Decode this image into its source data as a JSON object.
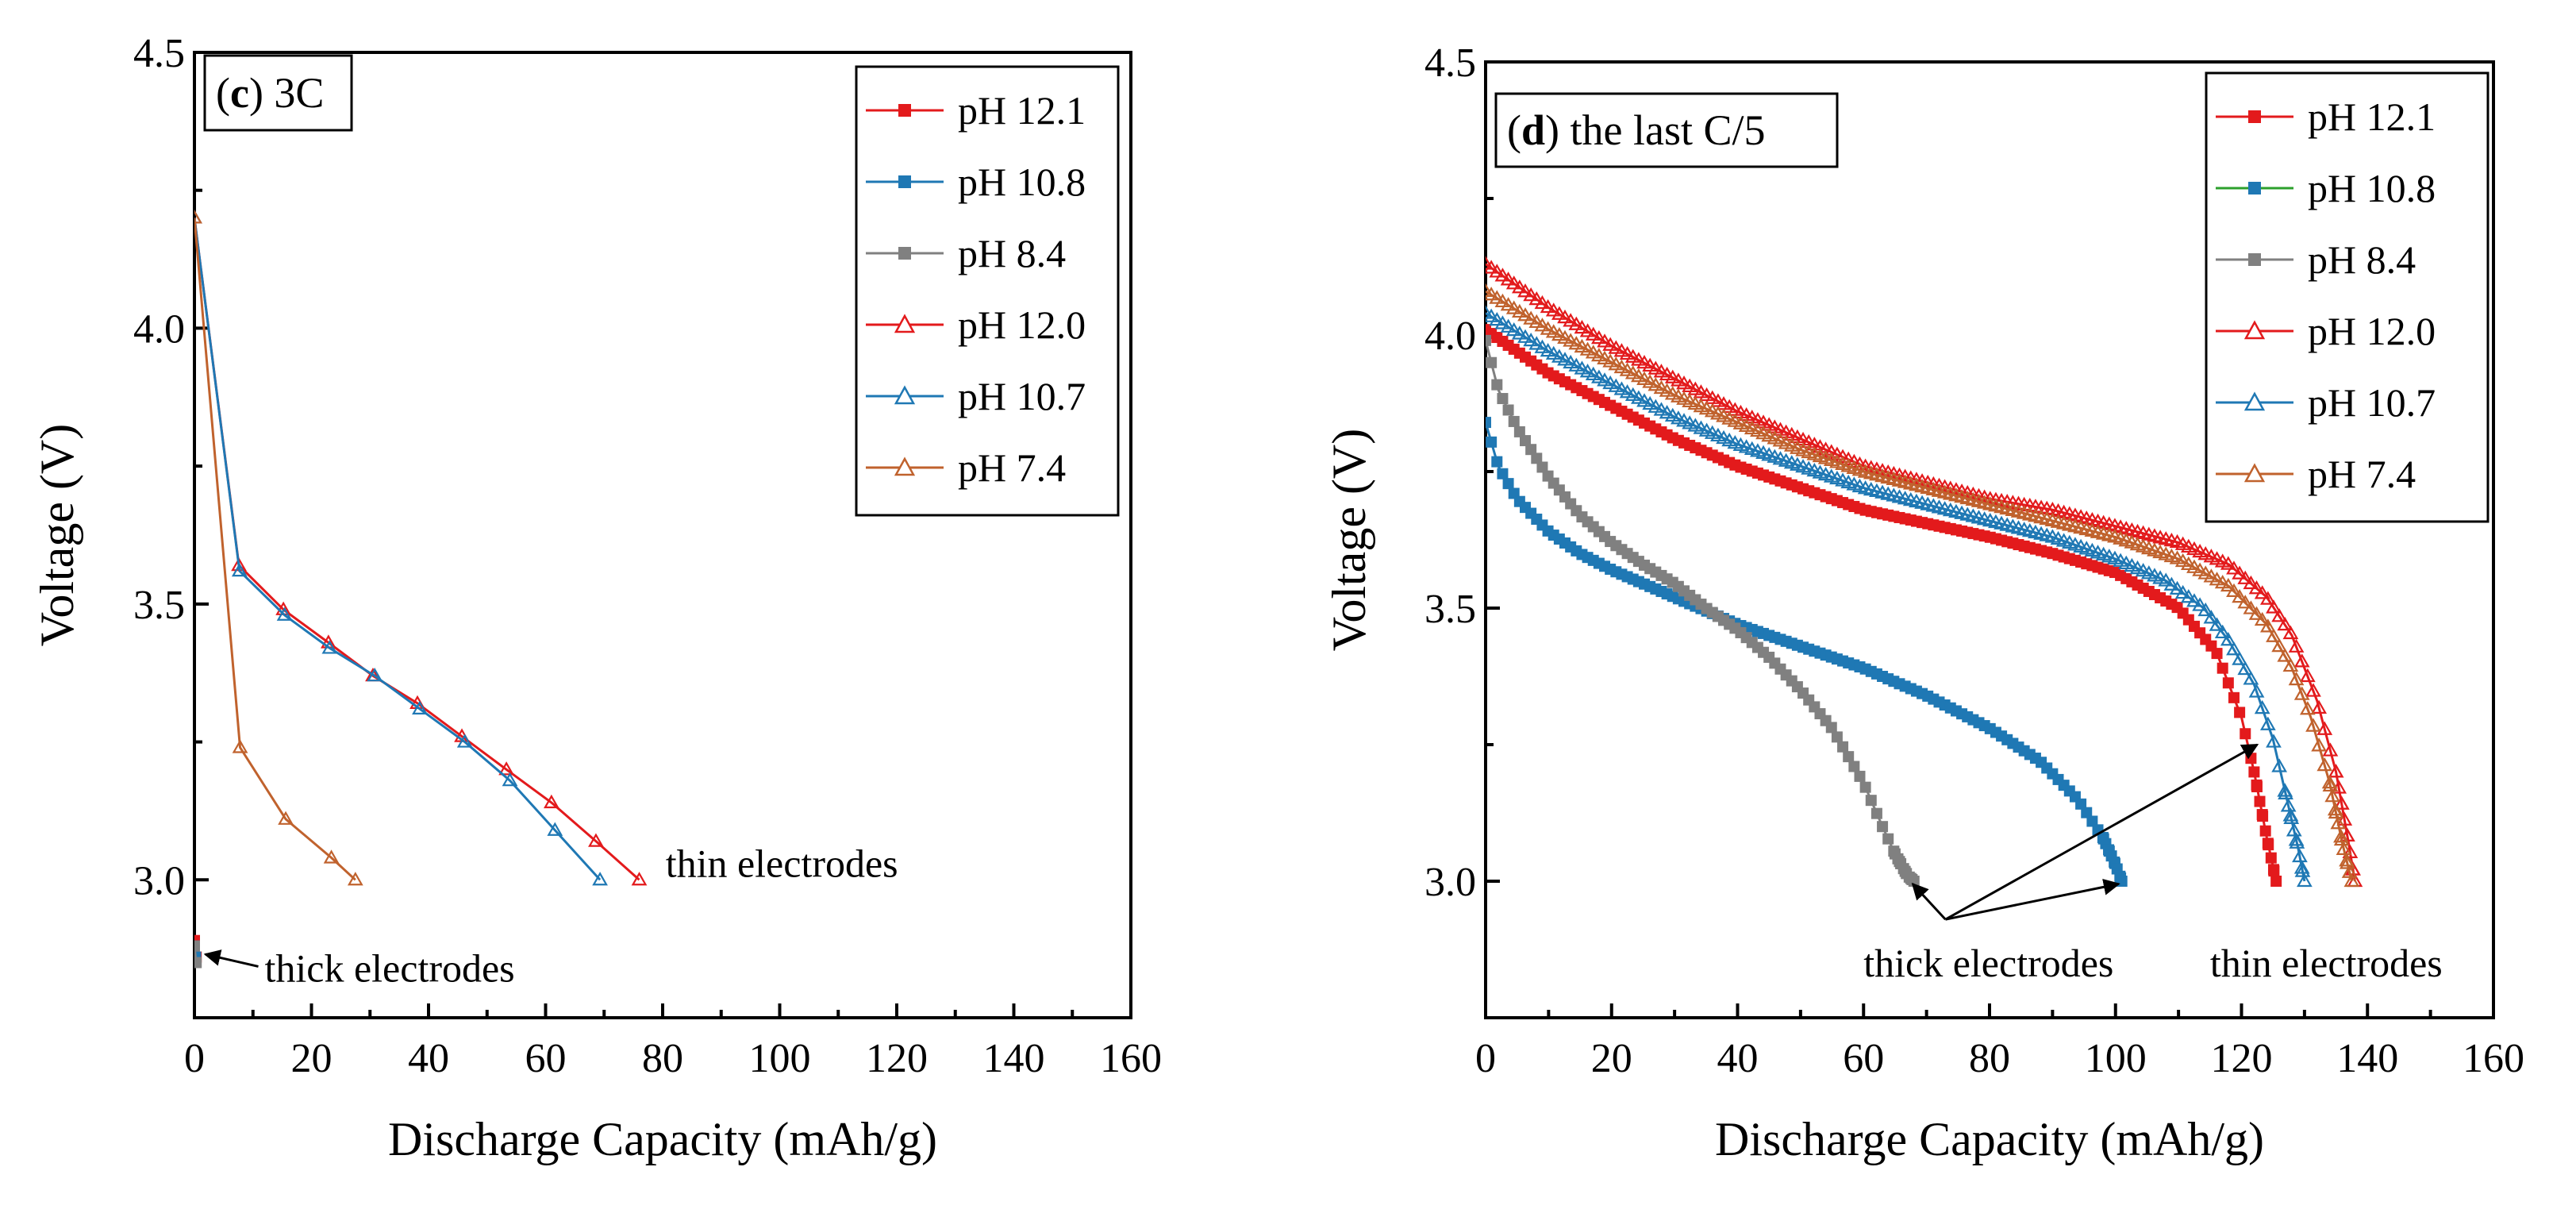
{
  "chart_data": [
    {
      "type": "line",
      "panel_label": {
        "letter": "c",
        "text": ") 3C"
      },
      "xlabel": "Discharge Capacity (mAh/g)",
      "ylabel": "Voltage (V)",
      "xlim": [
        0,
        160
      ],
      "ylim": [
        2.75,
        4.5
      ],
      "x_ticks": [
        0,
        20,
        40,
        60,
        80,
        100,
        120,
        140,
        160
      ],
      "y_ticks": [
        3.0,
        3.5,
        4.0,
        4.5
      ],
      "x_tick_labels": [
        "0",
        "20",
        "40",
        "60",
        "80",
        "100",
        "120",
        "140",
        "160"
      ],
      "y_tick_labels": [
        "3.0",
        "3.5",
        "4.0",
        "4.5"
      ],
      "legend_position": "top-right",
      "series": [
        {
          "name": "pH 12.1",
          "color": "#e31a1c",
          "marker": "square",
          "x": [
            0,
            0.3
          ],
          "y": [
            2.89,
            2.86
          ]
        },
        {
          "name": "pH 10.8",
          "color": "#1f78b4",
          "marker": "square",
          "x": [
            0,
            0.2
          ],
          "y": [
            2.88,
            2.86
          ]
        },
        {
          "name": "pH 8.4",
          "color": "#808080",
          "marker": "square",
          "x": [
            0,
            0.3
          ],
          "y": [
            2.88,
            2.85
          ]
        },
        {
          "name": "pH 12.0",
          "color": "#e31a1c",
          "marker": "triangle-open",
          "x": [
            0,
            7.6,
            15.2,
            22.9,
            30.5,
            38.1,
            45.7,
            53.3,
            61,
            68.6,
            76
          ],
          "y": [
            4.2,
            3.57,
            3.49,
            3.43,
            3.37,
            3.32,
            3.26,
            3.2,
            3.14,
            3.07,
            3.0
          ]
        },
        {
          "name": "pH 10.7",
          "color": "#1f78b4",
          "marker": "triangle-open",
          "x": [
            0,
            7.7,
            15.4,
            23.1,
            30.8,
            38.5,
            46.2,
            53.9,
            61.6,
            69.3
          ],
          "y": [
            4.2,
            3.56,
            3.48,
            3.42,
            3.37,
            3.31,
            3.25,
            3.18,
            3.09,
            3.0
          ]
        },
        {
          "name": "pH 7.4",
          "color": "#c0622d",
          "marker": "triangle-open",
          "x": [
            0,
            7.8,
            15.6,
            23.4,
            27.5
          ],
          "y": [
            4.2,
            3.24,
            3.11,
            3.04,
            3.0
          ]
        }
      ],
      "annotations": [
        {
          "text": "thin electrodes",
          "x": 80.5,
          "y": 3.03
        },
        {
          "text": "thick electrodes",
          "x": 12,
          "y": 2.84,
          "arrow_to": [
            0.5,
            2.865
          ]
        }
      ]
    },
    {
      "type": "line",
      "panel_label": {
        "letter": "d",
        "text": ") the last C/5"
      },
      "xlabel": "Discharge Capacity (mAh/g)",
      "ylabel": "Voltage (V)",
      "xlim": [
        0,
        160
      ],
      "ylim": [
        2.75,
        4.5
      ],
      "x_ticks": [
        0,
        20,
        40,
        60,
        80,
        100,
        120,
        140,
        160
      ],
      "y_ticks": [
        3.0,
        3.5,
        4.0,
        4.5
      ],
      "x_tick_labels": [
        "0",
        "20",
        "40",
        "60",
        "80",
        "100",
        "120",
        "140",
        "160"
      ],
      "y_tick_labels": [
        "3.0",
        "3.5",
        "4.0",
        "4.5"
      ],
      "legend_position": "top-right",
      "series": [
        {
          "name": "pH 12.1",
          "color": "#e31a1c",
          "marker": "square",
          "legend_line_color": "#e31a1c",
          "x": [
            0,
            10,
            20,
            30,
            40,
            50,
            60,
            70,
            80,
            90,
            100,
            110,
            116,
            120,
            122,
            124,
            125.5
          ],
          "y": [
            4.01,
            3.93,
            3.87,
            3.81,
            3.76,
            3.72,
            3.68,
            3.655,
            3.63,
            3.6,
            3.565,
            3.5,
            3.42,
            3.3,
            3.2,
            3.08,
            3.0
          ]
        },
        {
          "name": "pH 10.8",
          "color": "#1f78b4",
          "marker": "square",
          "legend_line_color": "#2ca02c",
          "x": [
            0,
            2,
            5,
            10,
            15,
            20,
            30,
            40,
            50,
            60,
            70,
            80,
            88,
            94,
            98,
            100,
            101
          ],
          "y": [
            3.84,
            3.76,
            3.7,
            3.64,
            3.6,
            3.57,
            3.52,
            3.47,
            3.43,
            3.39,
            3.34,
            3.28,
            3.22,
            3.15,
            3.08,
            3.03,
            3.0
          ]
        },
        {
          "name": "pH 8.4",
          "color": "#808080",
          "marker": "square",
          "legend_line_color": "#808080",
          "x": [
            0,
            2,
            5,
            10,
            15,
            20,
            25,
            30,
            35,
            40,
            45,
            50,
            55,
            60,
            63,
            65,
            67,
            68
          ],
          "y": [
            3.99,
            3.9,
            3.83,
            3.74,
            3.67,
            3.62,
            3.58,
            3.545,
            3.5,
            3.46,
            3.41,
            3.35,
            3.28,
            3.18,
            3.1,
            3.05,
            3.01,
            3.0
          ]
        },
        {
          "name": "pH 12.0",
          "color": "#e31a1c",
          "marker": "triangle-open",
          "legend_line_color": "#e31a1c",
          "x": [
            0,
            10,
            20,
            30,
            40,
            50,
            60,
            70,
            80,
            90,
            100,
            110,
            118,
            124,
            128,
            132,
            135,
            137,
            138
          ],
          "y": [
            4.13,
            4.05,
            3.98,
            3.92,
            3.86,
            3.81,
            3.76,
            3.73,
            3.7,
            3.68,
            3.65,
            3.62,
            3.58,
            3.52,
            3.45,
            3.33,
            3.2,
            3.07,
            3.0
          ]
        },
        {
          "name": "pH 10.7",
          "color": "#1f78b4",
          "marker": "triangle-open",
          "legend_line_color": "#1f78b4",
          "x": [
            0,
            10,
            20,
            30,
            40,
            50,
            60,
            70,
            80,
            90,
            100,
            108,
            114,
            118,
            122,
            125,
            127,
            129,
            130
          ],
          "y": [
            4.04,
            3.97,
            3.91,
            3.85,
            3.8,
            3.76,
            3.72,
            3.69,
            3.66,
            3.63,
            3.59,
            3.55,
            3.5,
            3.44,
            3.36,
            3.26,
            3.16,
            3.06,
            3.0
          ]
        },
        {
          "name": "pH 7.4",
          "color": "#c0622d",
          "marker": "triangle-open",
          "legend_line_color": "#c0622d",
          "x": [
            0,
            10,
            20,
            30,
            40,
            50,
            60,
            70,
            80,
            90,
            100,
            110,
            118,
            124,
            128,
            131,
            134,
            136,
            137.5
          ],
          "y": [
            4.08,
            4.01,
            3.95,
            3.89,
            3.84,
            3.79,
            3.75,
            3.72,
            3.69,
            3.66,
            3.63,
            3.59,
            3.54,
            3.47,
            3.39,
            3.3,
            3.18,
            3.07,
            3.0
          ]
        }
      ],
      "annotations": [
        {
          "text": "thick electrodes",
          "x": 60,
          "y": 2.85
        },
        {
          "text": "thin electrodes",
          "x": 115,
          "y": 2.85
        }
      ],
      "arrows": [
        {
          "from": [
            73,
            2.93
          ],
          "to": [
            67.8,
            2.995
          ]
        },
        {
          "from": [
            73,
            2.93
          ],
          "to": [
            100.5,
            2.995
          ]
        },
        {
          "from": [
            73,
            2.93
          ],
          "to": [
            122.5,
            3.25
          ]
        }
      ]
    }
  ]
}
